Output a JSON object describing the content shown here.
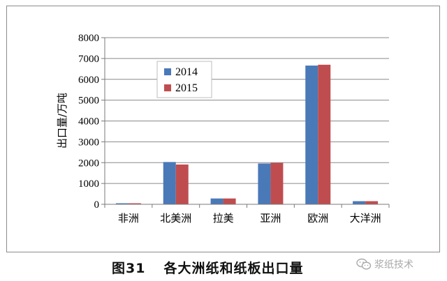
{
  "chart_data": {
    "type": "bar",
    "categories": [
      "非洲",
      "北美洲",
      "拉美",
      "亚洲",
      "欧洲",
      "大洋洲"
    ],
    "series": [
      {
        "name": "2014",
        "values": [
          50,
          2030,
          280,
          1960,
          6660,
          150
        ],
        "color": "#4a79b8"
      },
      {
        "name": "2015",
        "values": [
          50,
          1910,
          280,
          1990,
          6700,
          150
        ],
        "color": "#bf4d4f"
      }
    ],
    "ylabel": "出口量/万吨",
    "ylim": [
      0,
      8000
    ],
    "yticks": [
      0,
      1000,
      2000,
      3000,
      4000,
      5000,
      6000,
      7000,
      8000
    ],
    "grid": true,
    "legend_position": "upper-left"
  },
  "caption": {
    "figure_number": "图31",
    "title": "各大洲纸和纸板出口量"
  },
  "watermark": {
    "text": "浆纸技术",
    "icon": "wechat-icon"
  }
}
